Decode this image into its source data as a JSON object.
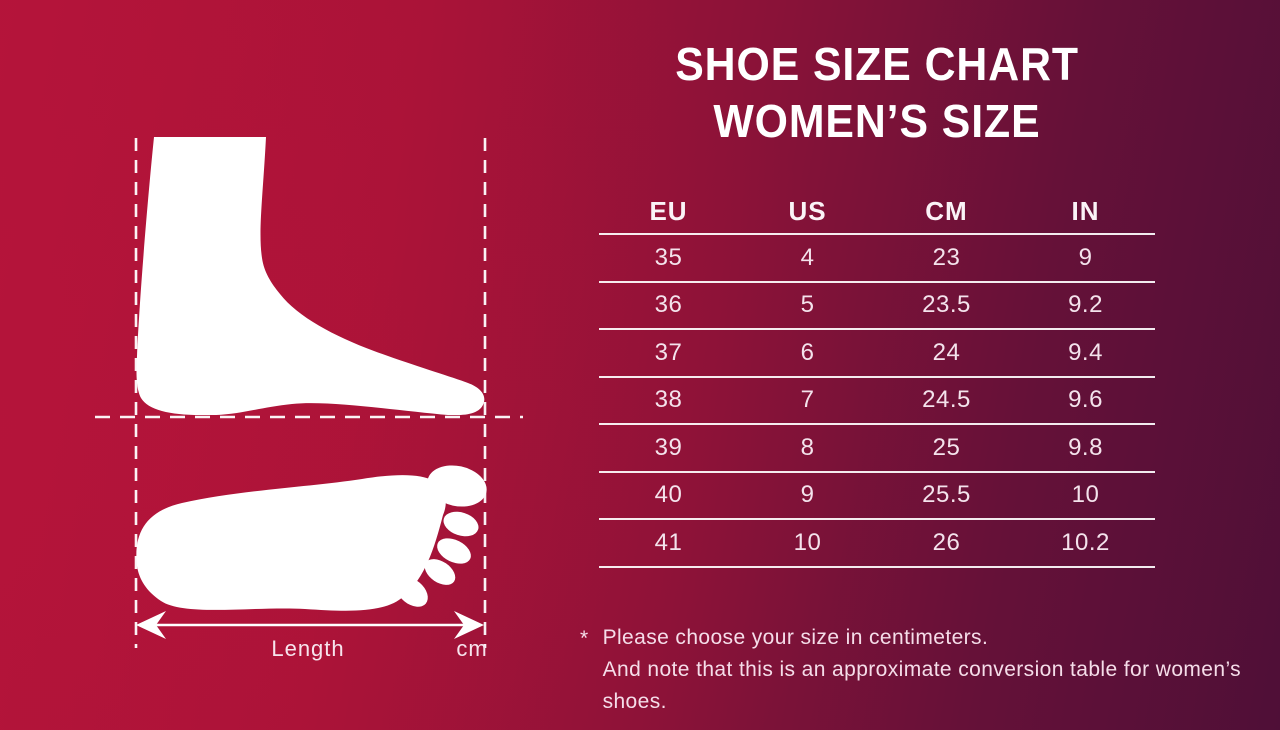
{
  "title": {
    "line1": "SHOE SIZE CHART",
    "line2": "WOMEN’S SIZE"
  },
  "chart_data": {
    "type": "table",
    "title": "Shoe Size Chart — Women's Size",
    "columns": [
      "EU",
      "US",
      "CM",
      "IN"
    ],
    "rows": [
      [
        "35",
        "4",
        "23",
        "9"
      ],
      [
        "36",
        "5",
        "23.5",
        "9.2"
      ],
      [
        "37",
        "6",
        "24",
        "9.4"
      ],
      [
        "38",
        "7",
        "24.5",
        "9.6"
      ],
      [
        "39",
        "8",
        "25",
        "9.8"
      ],
      [
        "40",
        "9",
        "25.5",
        "10"
      ],
      [
        "41",
        "10",
        "26",
        "10.2"
      ]
    ]
  },
  "diagram": {
    "length_label": "Length",
    "unit_label": "cm"
  },
  "footnote": {
    "marker": "*",
    "line1": "Please choose your size in centimeters.",
    "line2": "And note that this is an approximate conversion table for women’s shoes."
  },
  "colors": {
    "background_left": "#b4143a",
    "background_right": "#4f0f37",
    "foot_fill": "#ffffff",
    "table_text": "#f4e3ec",
    "title_text": "#ffffff"
  }
}
